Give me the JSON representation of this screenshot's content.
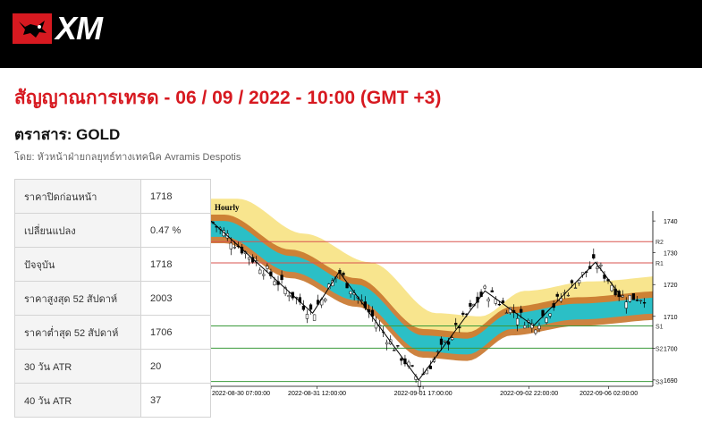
{
  "header": {
    "logo_text": "XM",
    "logo_icon": "bull-icon"
  },
  "page": {
    "title": "สัญญาณการเทรด - 06 / 09 / 2022 - 10:00 (GMT +3)",
    "instrument": "ตราสาร: GOLD",
    "author": "โดย: หัวหน้าฝ่ายกลยุทธ์ทางเทคนิค Avramis Despotis"
  },
  "stats": [
    {
      "label": "ราคาปิดก่อนหน้า",
      "value": "1718"
    },
    {
      "label": "เปลี่ยนแปลง",
      "value": "0.47 %"
    },
    {
      "label": "ปัจจุบัน",
      "value": "1718"
    },
    {
      "label": "ราคาสูงสุด 52 สัปดาห์",
      "value": "2003"
    },
    {
      "label": "ราคาต่ำสุด 52 สัปดาห์",
      "value": "1706"
    },
    {
      "label": "30 วัน ATR",
      "value": "20"
    },
    {
      "label": "40 วัน ATR",
      "value": "37"
    }
  ],
  "chart_data": {
    "type": "candlestick",
    "timeframe": "Hourly",
    "ylim": [
      1688,
      1742
    ],
    "y_ticks": [
      1690,
      1700,
      1710,
      1720,
      1730,
      1740
    ],
    "x_tick_labels": [
      "2022-08-30 07:00:00",
      "2022-08-31 12:00:00",
      "2022-09-01 17:00:00",
      "2022-09-02 22:00:00",
      "2022-09-06 02:00:00"
    ],
    "levels": [
      {
        "name": "R2",
        "value": 1733.5,
        "color": "#d9534f"
      },
      {
        "name": "R1",
        "value": 1726.8,
        "color": "#d9534f"
      },
      {
        "name": "S1",
        "value": 1707.0,
        "color": "#3a9a3a"
      },
      {
        "name": "S2",
        "value": 1700.0,
        "color": "#3a9a3a"
      },
      {
        "name": "S3",
        "value": 1689.5,
        "color": "#3a9a3a"
      }
    ],
    "zigzag": [
      [
        0,
        1740
      ],
      [
        0.23,
        1711
      ],
      [
        0.29,
        1724
      ],
      [
        0.47,
        1690
      ],
      [
        0.62,
        1718
      ],
      [
        0.73,
        1707
      ],
      [
        0.87,
        1727
      ],
      [
        0.93,
        1716
      ]
    ],
    "colors": {
      "outer_band": "#f7e07a",
      "middle_band": "#c8762b",
      "inner_band": "#2bbfc6"
    }
  }
}
